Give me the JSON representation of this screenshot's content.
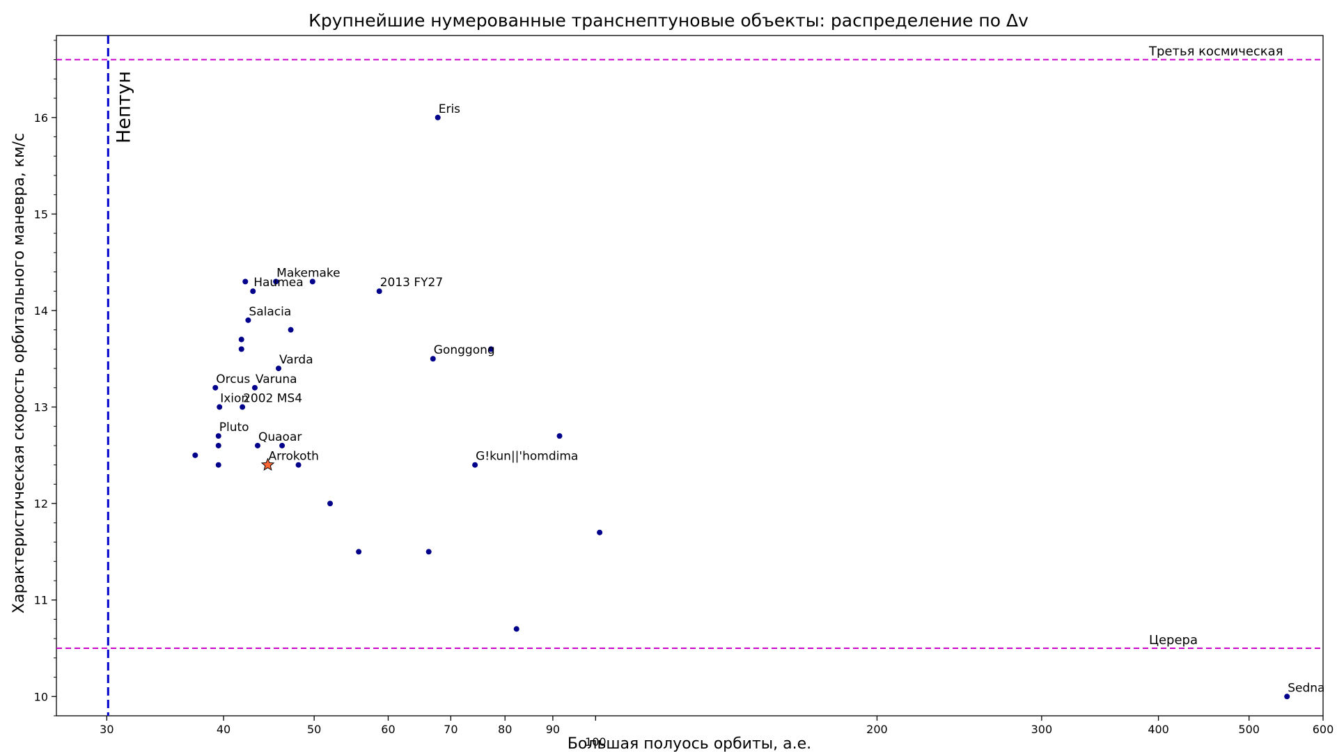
{
  "chart_data": {
    "type": "scatter",
    "title": "Крупнейшие нумерованные транснептуновые объекты: распределение по Δv",
    "xlabel": "Большая полуось орбиты, а.е.",
    "ylabel": "Характеристическая скорость орбитального маневра, км/с",
    "xscale": "log",
    "xlim": [
      26.5,
      600
    ],
    "ylim": [
      9.8,
      16.85
    ],
    "xticks": [
      30,
      40,
      50,
      60,
      70,
      80,
      90,
      100,
      200,
      300,
      400,
      500,
      600
    ],
    "yticks": [
      10,
      11,
      12,
      13,
      14,
      15,
      16
    ],
    "grid": false,
    "colors": {
      "points": "#00008b",
      "highlight": "#ff6633",
      "neptune_line": "#0000cd",
      "reference_lines": "#cc00cc"
    },
    "vertical_line": {
      "x": 30.1,
      "label": "Нептун"
    },
    "reference_lines": [
      {
        "y": 16.6,
        "label": "Третья космическая"
      },
      {
        "y": 10.5,
        "label": "Церера"
      }
    ],
    "points": [
      {
        "x": 67.8,
        "y": 16.0,
        "label": "Eris"
      },
      {
        "x": 42.2,
        "y": 14.3,
        "label": ""
      },
      {
        "x": 43.0,
        "y": 14.2,
        "label": "Haumea"
      },
      {
        "x": 45.5,
        "y": 14.3,
        "label": "Makemake"
      },
      {
        "x": 49.8,
        "y": 14.3,
        "label": ""
      },
      {
        "x": 58.7,
        "y": 14.2,
        "label": "2013 FY27"
      },
      {
        "x": 42.5,
        "y": 13.9,
        "label": "Salacia"
      },
      {
        "x": 47.2,
        "y": 13.8,
        "label": ""
      },
      {
        "x": 41.8,
        "y": 13.7,
        "label": ""
      },
      {
        "x": 41.8,
        "y": 13.6,
        "label": ""
      },
      {
        "x": 77.3,
        "y": 13.6,
        "label": ""
      },
      {
        "x": 67.0,
        "y": 13.5,
        "label": "Gonggong"
      },
      {
        "x": 45.8,
        "y": 13.4,
        "label": "Varda"
      },
      {
        "x": 39.2,
        "y": 13.2,
        "label": "Orcus"
      },
      {
        "x": 43.2,
        "y": 13.2,
        "label": "Varuna"
      },
      {
        "x": 39.6,
        "y": 13.0,
        "label": "Ixion"
      },
      {
        "x": 41.9,
        "y": 13.0,
        "label": "2002 MS4"
      },
      {
        "x": 39.5,
        "y": 12.7,
        "label": "Pluto"
      },
      {
        "x": 39.5,
        "y": 12.6,
        "label": ""
      },
      {
        "x": 43.5,
        "y": 12.6,
        "label": "Quaoar"
      },
      {
        "x": 46.2,
        "y": 12.6,
        "label": ""
      },
      {
        "x": 37.3,
        "y": 12.5,
        "label": ""
      },
      {
        "x": 39.5,
        "y": 12.4,
        "label": ""
      },
      {
        "x": 44.6,
        "y": 12.4,
        "label": "Arrokoth",
        "highlight": true
      },
      {
        "x": 48.1,
        "y": 12.4,
        "label": ""
      },
      {
        "x": 74.3,
        "y": 12.4,
        "label": "G!kun||'homdima"
      },
      {
        "x": 91.5,
        "y": 12.7,
        "label": ""
      },
      {
        "x": 52.0,
        "y": 12.0,
        "label": ""
      },
      {
        "x": 101.0,
        "y": 11.7,
        "label": ""
      },
      {
        "x": 55.8,
        "y": 11.5,
        "label": ""
      },
      {
        "x": 66.3,
        "y": 11.5,
        "label": ""
      },
      {
        "x": 82.3,
        "y": 10.7,
        "label": ""
      },
      {
        "x": 549.0,
        "y": 10.0,
        "label": "Sedna"
      }
    ]
  }
}
